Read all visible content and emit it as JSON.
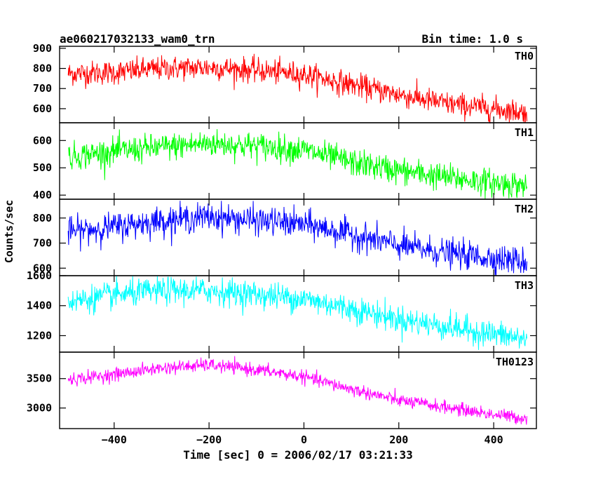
{
  "chart_data": {
    "type": "line",
    "title": "ae060217032133_wam0_trn",
    "subtitle": "Bin time: 1.0 s",
    "xlabel": "Time [sec] 0 = 2006/02/17 03:21:33",
    "ylabel": "Counts/sec",
    "xlim": [
      -515,
      490
    ],
    "x_ticks": [
      -400,
      -200,
      0,
      200,
      400
    ],
    "x_tick_labels": [
      "−400",
      "−200",
      "0",
      "200",
      "400"
    ],
    "x_range_data": [
      -497,
      470
    ],
    "bin_time_s": 1.0,
    "panels": [
      {
        "name": "TH0",
        "color": "#ff0000",
        "ylim": [
          530,
          910
        ],
        "y_ticks": [
          600,
          700,
          800,
          900
        ],
        "y_tick_labels": [
          "600",
          "700",
          "800",
          "900"
        ],
        "trend": [
          [
            -497,
            775
          ],
          [
            -400,
            780
          ],
          [
            -300,
            800
          ],
          [
            -200,
            805
          ],
          [
            -100,
            790
          ],
          [
            0,
            770
          ],
          [
            100,
            720
          ],
          [
            200,
            670
          ],
          [
            300,
            625
          ],
          [
            400,
            600
          ],
          [
            470,
            580
          ]
        ],
        "noise_sd": 30
      },
      {
        "name": "TH1",
        "color": "#00ff00",
        "ylim": [
          385,
          665
        ],
        "y_ticks": [
          400,
          500,
          600
        ],
        "y_tick_labels": [
          "400",
          "500",
          "600"
        ],
        "trend": [
          [
            -497,
            540
          ],
          [
            -400,
            560
          ],
          [
            -300,
            575
          ],
          [
            -200,
            590
          ],
          [
            -100,
            580
          ],
          [
            0,
            565
          ],
          [
            100,
            520
          ],
          [
            200,
            490
          ],
          [
            300,
            465
          ],
          [
            400,
            445
          ],
          [
            470,
            435
          ]
        ],
        "noise_sd": 25
      },
      {
        "name": "TH2",
        "color": "#0000ff",
        "ylim": [
          570,
          875
        ],
        "y_ticks": [
          600,
          700,
          800
        ],
        "y_tick_labels": [
          "600",
          "700",
          "800"
        ],
        "trend": [
          [
            -497,
            745
          ],
          [
            -400,
            765
          ],
          [
            -300,
            790
          ],
          [
            -200,
            805
          ],
          [
            -100,
            790
          ],
          [
            0,
            775
          ],
          [
            100,
            735
          ],
          [
            200,
            690
          ],
          [
            300,
            660
          ],
          [
            400,
            640
          ],
          [
            470,
            625
          ]
        ],
        "noise_sd": 28
      },
      {
        "name": "TH3",
        "color": "#00ffff",
        "ylim": [
          1090,
          1600
        ],
        "y_ticks": [
          1200,
          1400,
          1600
        ],
        "y_tick_labels": [
          "1200",
          "1400",
          "1600"
        ],
        "trend": [
          [
            -497,
            1425
          ],
          [
            -400,
            1470
          ],
          [
            -300,
            1500
          ],
          [
            -200,
            1500
          ],
          [
            -100,
            1475
          ],
          [
            0,
            1445
          ],
          [
            100,
            1380
          ],
          [
            200,
            1310
          ],
          [
            300,
            1260
          ],
          [
            400,
            1210
          ],
          [
            470,
            1175
          ]
        ],
        "noise_sd": 45
      },
      {
        "name": "TH0123",
        "color": "#ff00ff",
        "ylim": [
          2650,
          3950
        ],
        "y_ticks": [
          3000,
          3500
        ],
        "y_tick_labels": [
          "3000",
          "3500"
        ],
        "trend": [
          [
            -497,
            3480
          ],
          [
            -400,
            3570
          ],
          [
            -300,
            3680
          ],
          [
            -200,
            3730
          ],
          [
            -100,
            3650
          ],
          [
            0,
            3530
          ],
          [
            100,
            3320
          ],
          [
            200,
            3130
          ],
          [
            300,
            3010
          ],
          [
            400,
            2890
          ],
          [
            470,
            2820
          ]
        ],
        "noise_sd": 55
      }
    ],
    "grid": false,
    "legend": "none"
  }
}
